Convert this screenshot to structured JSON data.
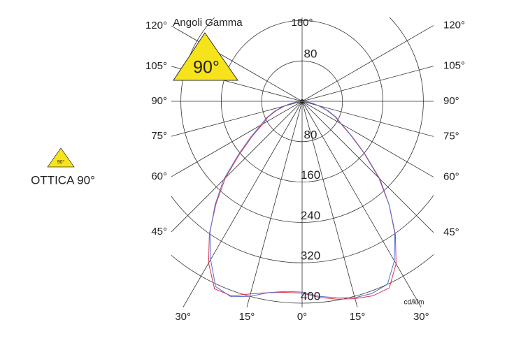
{
  "chart_data": {
    "type": "polar",
    "title": "Angoli Gamma",
    "unit": "cd/klm",
    "badge_label": "90°",
    "optic_label": "OTTICA 90°",
    "x": [
      -90,
      -85,
      -80,
      -75,
      -70,
      -65,
      -60,
      -55,
      -50,
      -45,
      -40,
      -35,
      -30,
      -25,
      -20,
      -15,
      -10,
      -5,
      0,
      5,
      10,
      15,
      20,
      25,
      30,
      35,
      40,
      45,
      50,
      55,
      60,
      65,
      70,
      75,
      80,
      85,
      90
    ],
    "series": [
      {
        "color": "#d8324e",
        "values": [
          0,
          8,
          20,
          35,
          55,
          75,
          90,
          120,
          160,
          215,
          265,
          320,
          370,
          410,
          410,
          395,
          385,
          380,
          380,
          390,
          398,
          405,
          410,
          408,
          372,
          322,
          268,
          215,
          160,
          118,
          88,
          72,
          52,
          33,
          18,
          6,
          0
        ]
      },
      {
        "color": "#5a6fd0",
        "values": [
          0,
          8,
          22,
          38,
          58,
          78,
          95,
          125,
          165,
          220,
          268,
          318,
          362,
          405,
          412,
          400,
          385,
          378,
          378,
          388,
          395,
          403,
          405,
          400,
          365,
          320,
          268,
          218,
          162,
          120,
          90,
          74,
          55,
          35,
          20,
          7,
          0
        ]
      }
    ],
    "rlim": [
      0,
      400
    ],
    "rticks": [
      80,
      160,
      240,
      320,
      400
    ],
    "angle_ticks": [
      {
        "value": 0,
        "label": "0°"
      },
      {
        "value": 15,
        "label": "15°"
      },
      {
        "value": 30,
        "label": "30°"
      },
      {
        "value": 45,
        "label": "45°"
      },
      {
        "value": 60,
        "label": "60°"
      },
      {
        "value": 75,
        "label": "75°"
      },
      {
        "value": 90,
        "label": "90°"
      },
      {
        "value": 105,
        "label": "105°"
      },
      {
        "value": 120,
        "label": "120°"
      },
      {
        "value": 180,
        "label": "180°"
      }
    ]
  }
}
